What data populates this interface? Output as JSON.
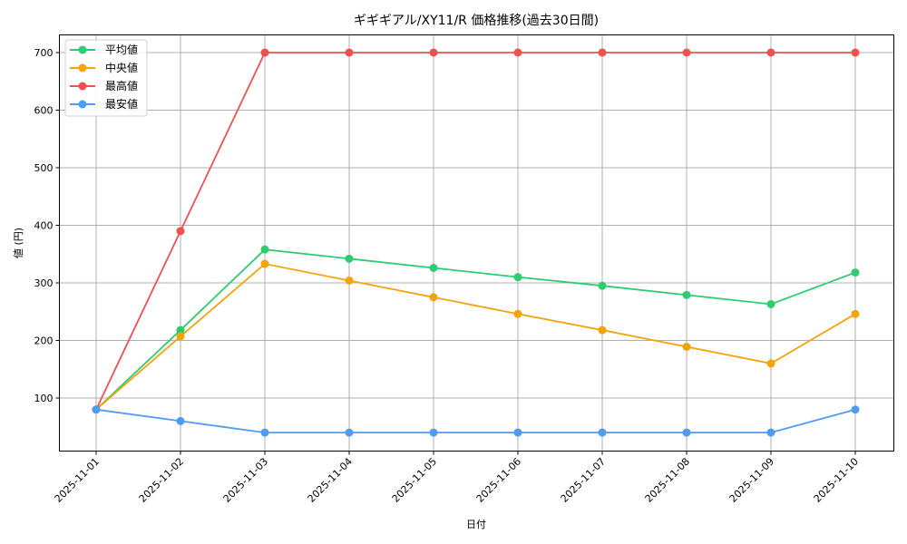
{
  "chart_data": {
    "type": "line",
    "title": "ギギギアル/XY11/R 価格推移(過去30日間)",
    "xlabel": "日付",
    "ylabel": "値 (円)",
    "x": [
      "2025-11-01",
      "2025-11-02",
      "2025-11-03",
      "2025-11-04",
      "2025-11-05",
      "2025-11-06",
      "2025-11-07",
      "2025-11-08",
      "2025-11-09",
      "2025-11-10"
    ],
    "yticks": [
      100,
      200,
      300,
      400,
      500,
      600,
      700
    ],
    "ylim": [
      5,
      735
    ],
    "grid": true,
    "legend_position": "upper left",
    "series": [
      {
        "name": "平均値",
        "color": "#2ecc71",
        "values": [
          80,
          218,
          358,
          342,
          326,
          310,
          295,
          279,
          263,
          318
        ]
      },
      {
        "name": "中央値",
        "color": "#f5a30a",
        "values": [
          80,
          207,
          333,
          304,
          275,
          246,
          218,
          189,
          160,
          246
        ]
      },
      {
        "name": "最高値",
        "color": "#f05050",
        "values": [
          80,
          390,
          700,
          700,
          700,
          700,
          700,
          700,
          700,
          700
        ]
      },
      {
        "name": "最安値",
        "color": "#4f9cf5",
        "values": [
          80,
          60,
          40,
          40,
          40,
          40,
          40,
          40,
          40,
          80
        ]
      }
    ]
  }
}
